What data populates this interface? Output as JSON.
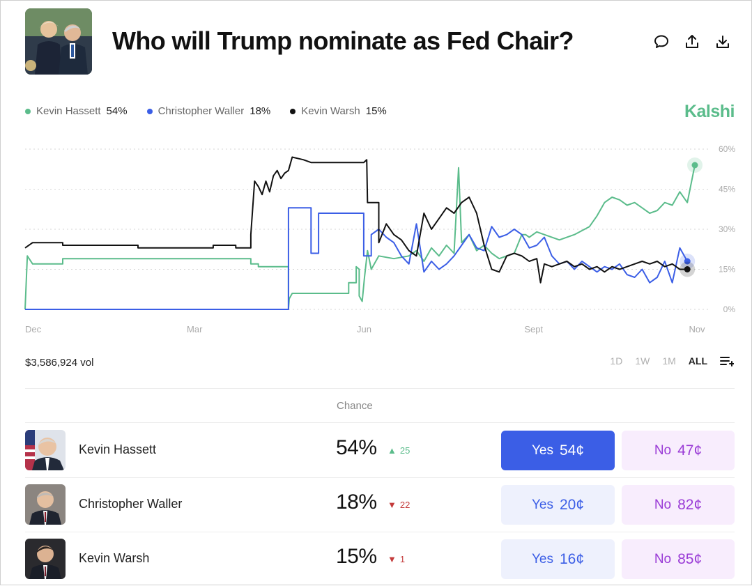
{
  "header": {
    "title": "Who will Trump nominate as Fed Chair?"
  },
  "icons": {
    "comment": "comment-icon",
    "share": "share-icon",
    "download": "download-icon",
    "add": "add-list-icon"
  },
  "brand": "Kalshi",
  "legend": [
    {
      "name": "Kevin Hassett",
      "value": "54%",
      "color": "#5bbc8b"
    },
    {
      "name": "Christopher Waller",
      "value": "18%",
      "color": "#3b5ee6"
    },
    {
      "name": "Kevin Warsh",
      "value": "15%",
      "color": "#111111"
    }
  ],
  "chart_data": {
    "type": "line",
    "ylim": [
      0,
      60
    ],
    "y_ticks": [
      "60%",
      "45%",
      "30%",
      "15%",
      "0%"
    ],
    "x_ticks": [
      "Dec",
      "Mar",
      "Jun",
      "Sept",
      "Nov"
    ],
    "grid": true,
    "series": [
      {
        "name": "Kevin Hassett",
        "color": "#5bbc8b",
        "points": [
          [
            0,
            0
          ],
          [
            0.3,
            20
          ],
          [
            1,
            17
          ],
          [
            5,
            17
          ],
          [
            5,
            19
          ],
          [
            30,
            19
          ],
          [
            30,
            17
          ],
          [
            31,
            17
          ],
          [
            31,
            16
          ],
          [
            35,
            16
          ],
          [
            35,
            0
          ],
          [
            35.1,
            4
          ],
          [
            35.5,
            6
          ],
          [
            43,
            6
          ],
          [
            43,
            10
          ],
          [
            44,
            10
          ],
          [
            44,
            16
          ],
          [
            44.4,
            15
          ],
          [
            44.4,
            5
          ],
          [
            44.8,
            3
          ],
          [
            45.1,
            12
          ],
          [
            45.5,
            22
          ],
          [
            46,
            15
          ],
          [
            47,
            20
          ],
          [
            49,
            19
          ],
          [
            51,
            20
          ],
          [
            52,
            22
          ],
          [
            53,
            18
          ],
          [
            54,
            23
          ],
          [
            55,
            20
          ],
          [
            56,
            24
          ],
          [
            57,
            21
          ],
          [
            57.6,
            53
          ],
          [
            58,
            25
          ],
          [
            59,
            28
          ],
          [
            60,
            22
          ],
          [
            61,
            24
          ],
          [
            62,
            21
          ],
          [
            63,
            19
          ],
          [
            64,
            20
          ],
          [
            65,
            21
          ],
          [
            66,
            28
          ],
          [
            66.5,
            28
          ],
          [
            67,
            27
          ],
          [
            68,
            29
          ],
          [
            69,
            28
          ],
          [
            71,
            26
          ],
          [
            73,
            28
          ],
          [
            75,
            31
          ],
          [
            76,
            35
          ],
          [
            77,
            40
          ],
          [
            78,
            42
          ],
          [
            79,
            41
          ],
          [
            80,
            39
          ],
          [
            81,
            40
          ],
          [
            82,
            38
          ],
          [
            83,
            36
          ],
          [
            84,
            37
          ],
          [
            85,
            40
          ],
          [
            86,
            39
          ],
          [
            87,
            44
          ],
          [
            88,
            40
          ],
          [
            89,
            54
          ]
        ]
      },
      {
        "name": "Christopher Waller",
        "color": "#3b5ee6",
        "points": [
          [
            0,
            0
          ],
          [
            35,
            0
          ],
          [
            35,
            38
          ],
          [
            38,
            38
          ],
          [
            38,
            21
          ],
          [
            39,
            21
          ],
          [
            39,
            36
          ],
          [
            45,
            36
          ],
          [
            45,
            20
          ],
          [
            46,
            20
          ],
          [
            46,
            28
          ],
          [
            47,
            30
          ],
          [
            48,
            27
          ],
          [
            49,
            25
          ],
          [
            50,
            20
          ],
          [
            51,
            17
          ],
          [
            52,
            32
          ],
          [
            53,
            14
          ],
          [
            54,
            18
          ],
          [
            55,
            15
          ],
          [
            56,
            17
          ],
          [
            57,
            20
          ],
          [
            58,
            24
          ],
          [
            59,
            28
          ],
          [
            60,
            23
          ],
          [
            61,
            22
          ],
          [
            62,
            31
          ],
          [
            63,
            27
          ],
          [
            64,
            28
          ],
          [
            65,
            30
          ],
          [
            66,
            28
          ],
          [
            67,
            23
          ],
          [
            68,
            24
          ],
          [
            69,
            27
          ],
          [
            70,
            20
          ],
          [
            71,
            17
          ],
          [
            72,
            18
          ],
          [
            73,
            15
          ],
          [
            74,
            18
          ],
          [
            75,
            16
          ],
          [
            76,
            14
          ],
          [
            77,
            16
          ],
          [
            78,
            15
          ],
          [
            79,
            17
          ],
          [
            80,
            13
          ],
          [
            81,
            12
          ],
          [
            82,
            15
          ],
          [
            83,
            10
          ],
          [
            84,
            12
          ],
          [
            85,
            18
          ],
          [
            86,
            10
          ],
          [
            87,
            23
          ],
          [
            88,
            18
          ]
        ]
      },
      {
        "name": "Kevin Warsh",
        "color": "#111111",
        "points": [
          [
            0,
            23
          ],
          [
            1,
            25
          ],
          [
            5,
            25
          ],
          [
            5,
            24
          ],
          [
            15,
            24
          ],
          [
            15,
            23
          ],
          [
            25,
            23
          ],
          [
            25,
            24
          ],
          [
            28,
            24
          ],
          [
            28,
            23
          ],
          [
            30,
            23
          ],
          [
            30,
            28
          ],
          [
            30.5,
            48
          ],
          [
            31,
            46
          ],
          [
            31.5,
            43
          ],
          [
            32,
            48
          ],
          [
            32.5,
            44
          ],
          [
            33,
            50
          ],
          [
            33.5,
            52
          ],
          [
            34,
            49
          ],
          [
            34.5,
            51
          ],
          [
            35,
            52
          ],
          [
            35.5,
            57
          ],
          [
            37,
            56
          ],
          [
            37,
            56
          ],
          [
            38,
            55
          ],
          [
            45,
            55
          ],
          [
            45.4,
            56
          ],
          [
            45.5,
            40
          ],
          [
            47,
            40
          ],
          [
            47,
            25
          ],
          [
            48,
            32
          ],
          [
            49,
            28
          ],
          [
            50,
            26
          ],
          [
            51,
            22
          ],
          [
            52,
            20
          ],
          [
            53,
            36
          ],
          [
            54,
            30
          ],
          [
            55,
            34
          ],
          [
            56,
            38
          ],
          [
            57,
            36
          ],
          [
            58,
            40
          ],
          [
            59,
            42
          ],
          [
            60,
            36
          ],
          [
            61,
            24
          ],
          [
            62,
            15
          ],
          [
            63,
            14
          ],
          [
            64,
            20
          ],
          [
            65,
            21
          ],
          [
            66,
            20
          ],
          [
            67,
            18
          ],
          [
            68,
            19
          ],
          [
            68.5,
            10
          ],
          [
            69,
            17
          ],
          [
            70,
            16
          ],
          [
            71,
            17
          ],
          [
            72,
            18
          ],
          [
            73,
            16
          ],
          [
            74,
            17
          ],
          [
            75,
            15
          ],
          [
            76,
            16
          ],
          [
            77,
            14
          ],
          [
            78,
            16
          ],
          [
            79,
            15
          ],
          [
            80,
            16
          ],
          [
            81,
            17
          ],
          [
            82,
            18
          ],
          [
            83,
            17
          ],
          [
            84,
            18
          ],
          [
            85,
            16
          ],
          [
            86,
            17
          ],
          [
            87,
            15
          ],
          [
            88,
            15
          ]
        ]
      }
    ],
    "end_values": [
      54,
      18,
      15
    ]
  },
  "volume": "$3,586,924 vol",
  "ranges": [
    "1D",
    "1W",
    "1M",
    "ALL"
  ],
  "active_range": "ALL",
  "table": {
    "header": "Chance",
    "rows": [
      {
        "name": "Kevin Hassett",
        "chance": "54%",
        "delta": "25",
        "dir": "up",
        "yes_label": "Yes",
        "yes_price": "54¢",
        "no_label": "No",
        "no_price": "47¢"
      },
      {
        "name": "Christopher Waller",
        "chance": "18%",
        "delta": "22",
        "dir": "down",
        "yes_label": "Yes",
        "yes_price": "20¢",
        "no_label": "No",
        "no_price": "82¢"
      },
      {
        "name": "Kevin Warsh",
        "chance": "15%",
        "delta": "1",
        "dir": "down",
        "yes_label": "Yes",
        "yes_price": "16¢",
        "no_label": "No",
        "no_price": "85¢"
      }
    ]
  }
}
